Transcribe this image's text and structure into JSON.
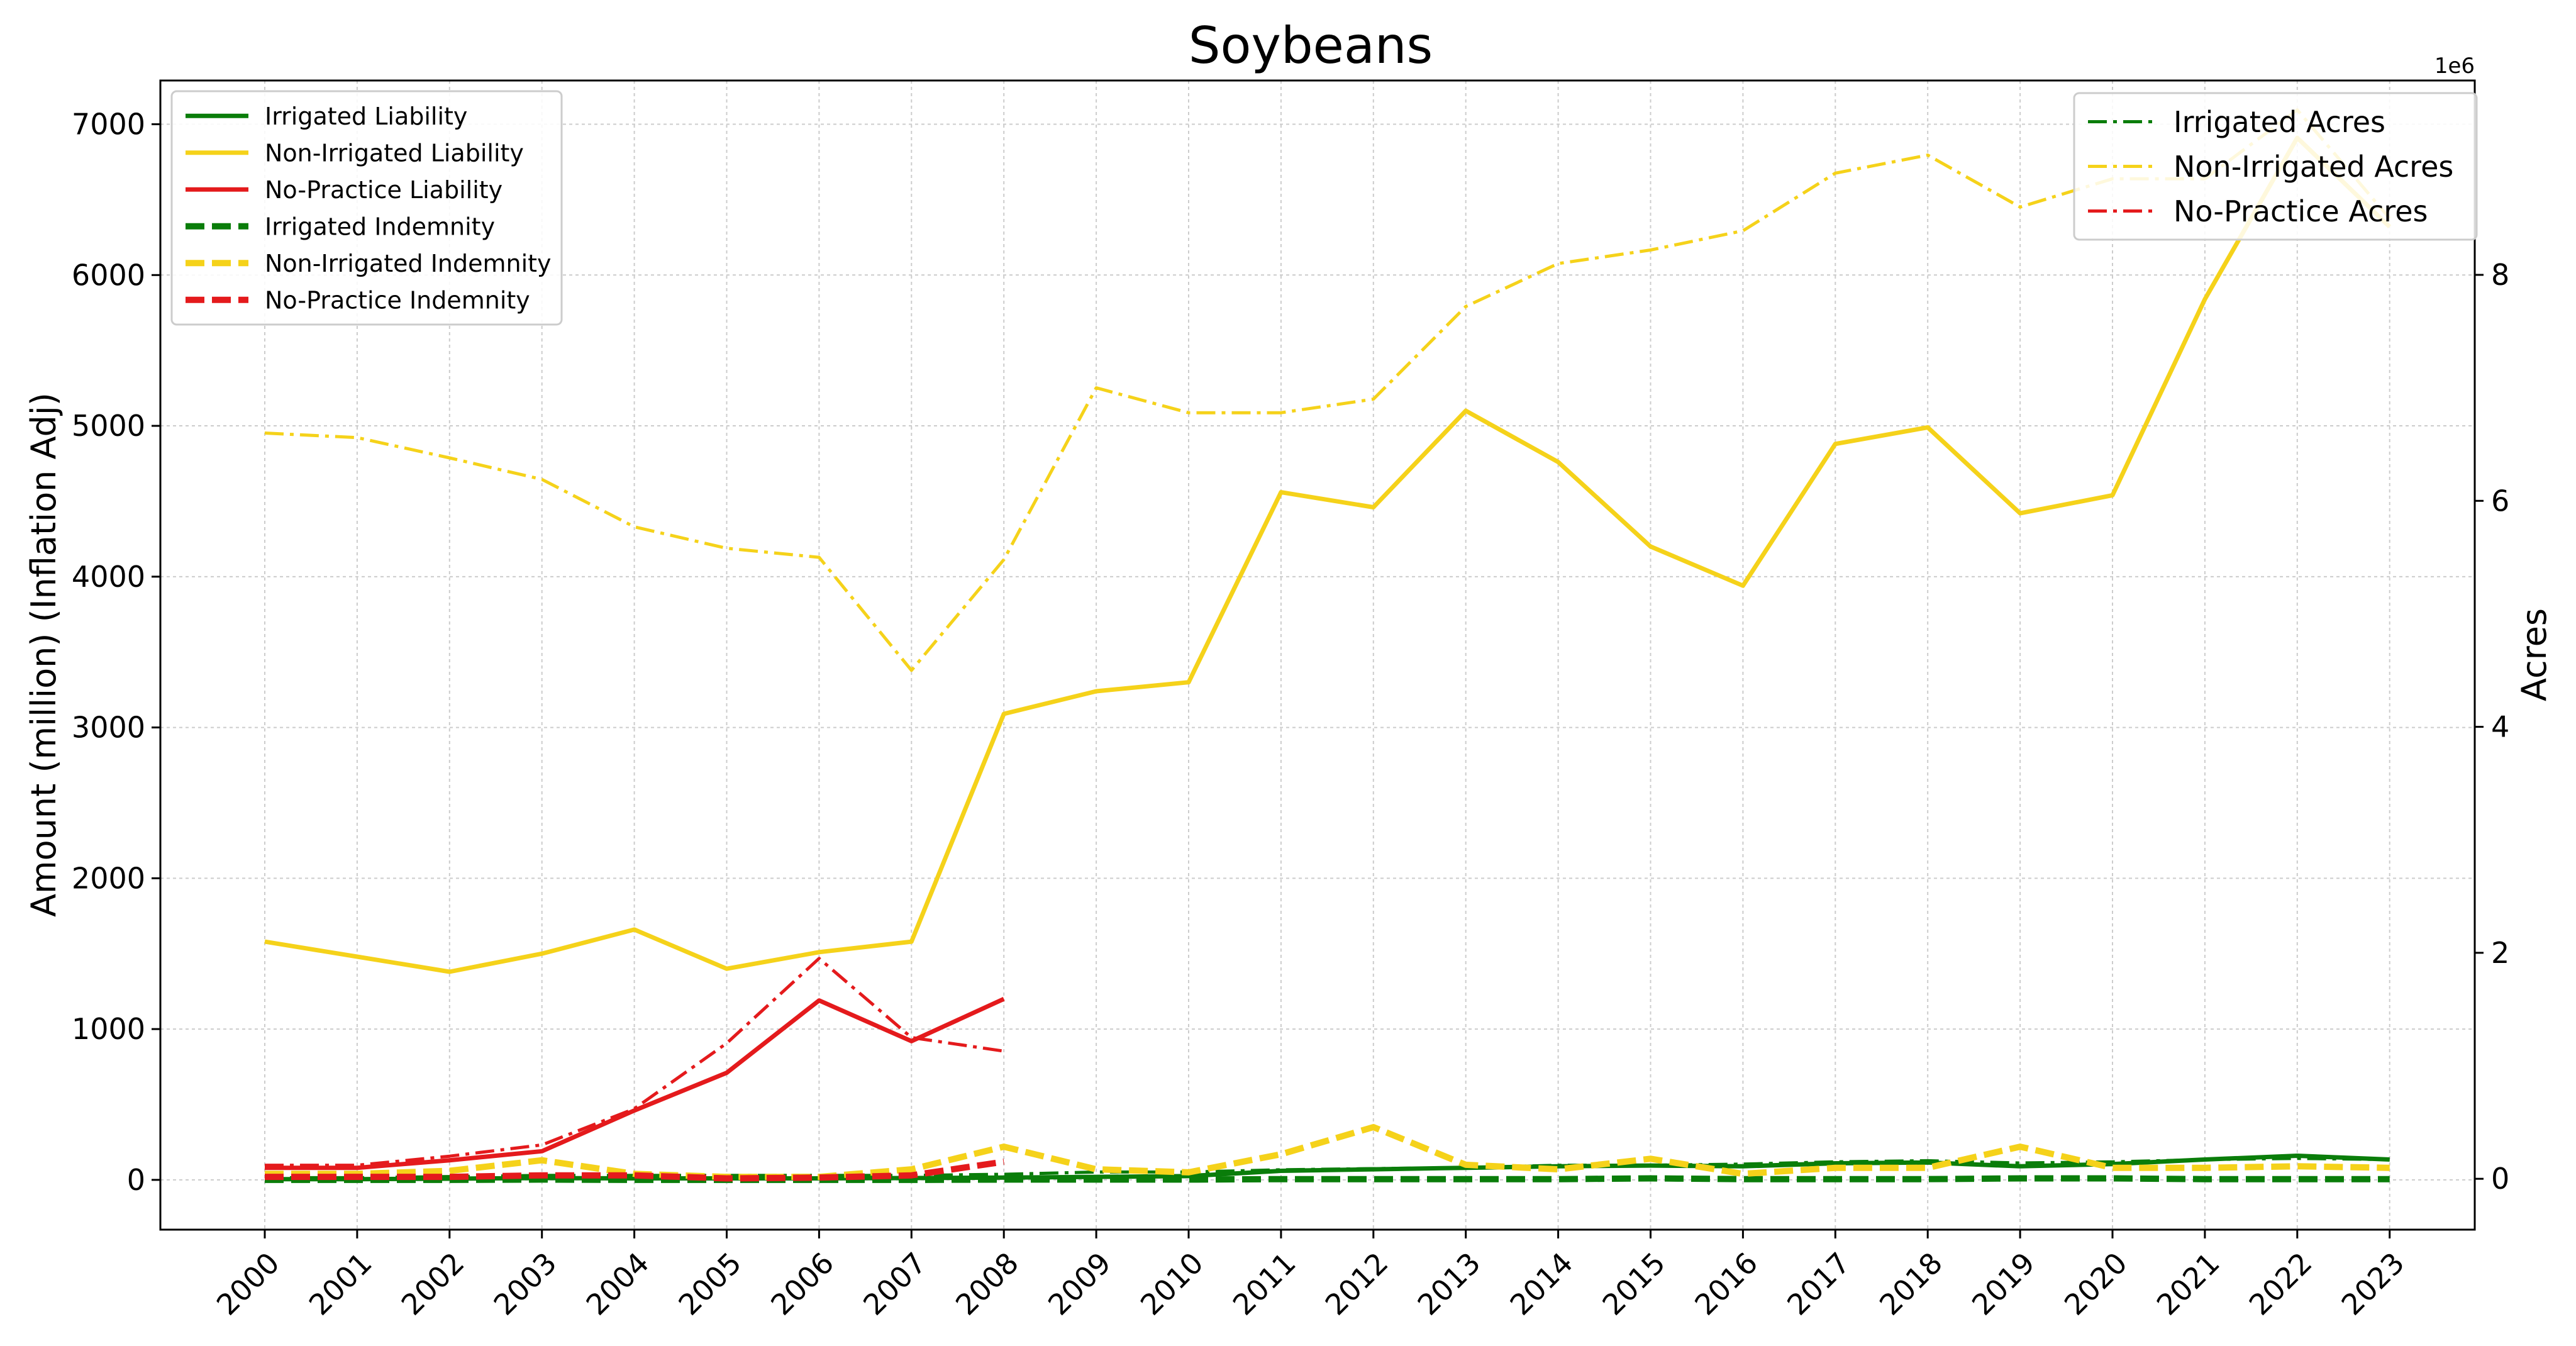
{
  "chart_data": {
    "type": "line",
    "title": "Soybeans",
    "ylabel": "Amount (million) (Inflation Adj)",
    "ylabel_right": "Acres",
    "right_axis_multiplier": "1e6",
    "x": [
      "2000",
      "2001",
      "2002",
      "2003",
      "2004",
      "2005",
      "2006",
      "2007",
      "2008",
      "2009",
      "2010",
      "2011",
      "2012",
      "2013",
      "2014",
      "2015",
      "2016",
      "2017",
      "2018",
      "2019",
      "2020",
      "2021",
      "2022",
      "2023"
    ],
    "ylim": [
      -330,
      7290
    ],
    "ylim_right": [
      -0.45,
      9.72
    ],
    "yticks_left": [
      "0",
      "1000",
      "2000",
      "3000",
      "4000",
      "5000",
      "6000",
      "7000"
    ],
    "yticks_right": [
      "0",
      "2",
      "4",
      "6",
      "8"
    ],
    "grid": true,
    "legend_left_position": "top-left",
    "legend_right_position": "top-right",
    "colors": {
      "irrigated": "#0a7d0a",
      "non_irrigated": "#f5d21a",
      "no_practice": "#e41a1c"
    },
    "series_left": [
      {
        "name": "Irrigated Liability",
        "group": "irrigated",
        "style": "solid",
        "values": [
          5,
          5,
          8,
          12,
          10,
          10,
          10,
          12,
          15,
          20,
          25,
          60,
          70,
          80,
          90,
          95,
          90,
          110,
          115,
          90,
          105,
          135,
          160,
          135
        ]
      },
      {
        "name": "Non-Irrigated Liability",
        "group": "non_irrigated",
        "style": "solid",
        "values": [
          1580,
          1480,
          1380,
          1500,
          1660,
          1400,
          1510,
          1580,
          3090,
          3240,
          3300,
          4560,
          4460,
          5100,
          4760,
          4200,
          3940,
          4880,
          4990,
          4420,
          4540,
          5840,
          6910,
          6320
        ]
      },
      {
        "name": "No-Practice Liability",
        "group": "no_practice",
        "style": "solid",
        "values": [
          80,
          80,
          130,
          190,
          460,
          710,
          1190,
          920,
          1200,
          null,
          null,
          null,
          null,
          null,
          null,
          null,
          null,
          null,
          null,
          null,
          null,
          null,
          null,
          null
        ]
      },
      {
        "name": "Irrigated Indemnity",
        "group": "irrigated",
        "style": "dashed",
        "values": [
          0,
          0,
          0,
          2,
          0,
          0,
          0,
          0,
          2,
          2,
          2,
          5,
          5,
          5,
          5,
          10,
          5,
          5,
          5,
          10,
          10,
          5,
          5,
          5
        ]
      },
      {
        "name": "Non-Irrigated Indemnity",
        "group": "non_irrigated",
        "style": "dashed",
        "values": [
          40,
          40,
          60,
          130,
          40,
          20,
          20,
          70,
          220,
          70,
          50,
          170,
          350,
          100,
          70,
          140,
          40,
          80,
          80,
          220,
          80,
          80,
          90,
          80
        ]
      },
      {
        "name": "No-Practice Indemnity",
        "group": "no_practice",
        "style": "dashed",
        "values": [
          20,
          20,
          20,
          30,
          30,
          10,
          15,
          30,
          120,
          null,
          null,
          null,
          null,
          null,
          null,
          null,
          null,
          null,
          null,
          null,
          null,
          null,
          null,
          null
        ]
      }
    ],
    "series_right": [
      {
        "name": "Irrigated Acres",
        "group": "irrigated",
        "style": "dashdot",
        "values": [
          0.01,
          0.01,
          0.02,
          0.03,
          0.03,
          0.03,
          0.03,
          0.03,
          0.04,
          0.06,
          0.06,
          0.08,
          0.09,
          0.1,
          0.12,
          0.12,
          0.13,
          0.15,
          0.16,
          0.14,
          0.15,
          0.17,
          0.18,
          0.17
        ]
      },
      {
        "name": "Non-Irrigated Acres",
        "group": "non_irrigated",
        "style": "dashdot",
        "values": [
          6.6,
          6.56,
          6.38,
          6.19,
          5.77,
          5.58,
          5.5,
          4.5,
          5.48,
          7.0,
          6.78,
          6.78,
          6.9,
          7.72,
          8.1,
          8.22,
          8.39,
          8.9,
          9.06,
          8.6,
          8.85,
          8.85,
          9.46,
          8.5
        ]
      },
      {
        "name": "No-Practice Acres",
        "group": "no_practice",
        "style": "dashdot",
        "values": [
          0.12,
          0.12,
          0.2,
          0.3,
          0.62,
          1.2,
          1.95,
          1.25,
          1.13,
          null,
          null,
          null,
          null,
          null,
          null,
          null,
          null,
          null,
          null,
          null,
          null,
          null,
          null,
          null
        ]
      }
    ]
  }
}
